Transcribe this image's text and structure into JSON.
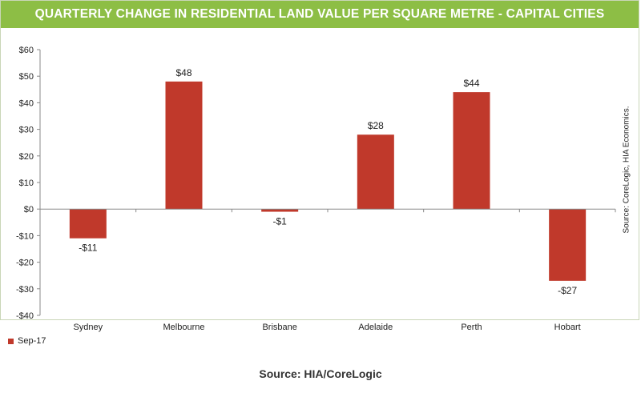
{
  "chart_data": {
    "type": "bar",
    "title": "QUARTERLY CHANGE IN RESIDENTIAL LAND VALUE PER SQUARE METRE - CAPITAL CITIES",
    "categories": [
      "Sydney",
      "Melbourne",
      "Brisbane",
      "Adelaide",
      "Perth",
      "Hobart"
    ],
    "series": [
      {
        "name": "Sep-17",
        "values": [
          -11,
          48,
          -1,
          28,
          44,
          -27
        ],
        "color": "#c0392b"
      }
    ],
    "data_labels": [
      "-$11",
      "$48",
      "-$1",
      "$28",
      "$44",
      "-$27"
    ],
    "ylim": [
      -40,
      60
    ],
    "yticks": [
      60,
      50,
      40,
      30,
      20,
      10,
      0,
      -10,
      -20,
      -30,
      -40
    ],
    "ytick_labels": [
      "$60",
      "$50",
      "$40",
      "$30",
      "$20",
      "$10",
      "$0",
      "-$10",
      "-$20",
      "-$30",
      "-$40"
    ],
    "grid": false,
    "legend_position": "bottom-left"
  },
  "side_source": "Source: CoreLogic, HIA Economics.",
  "footer_source": "Source: HIA/CoreLogic",
  "colors": {
    "title_bar": "#8dbe45",
    "bar": "#c0392b"
  }
}
